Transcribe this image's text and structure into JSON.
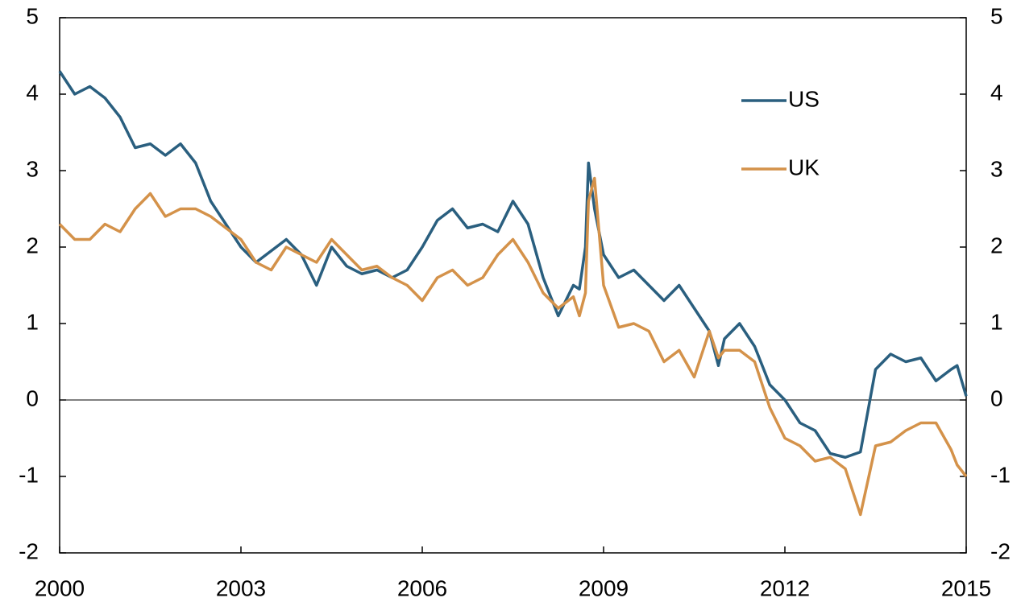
{
  "chart_data": {
    "type": "line",
    "x": [
      2000,
      2000.25,
      2000.5,
      2000.75,
      2001,
      2001.25,
      2001.5,
      2001.75,
      2002,
      2002.25,
      2002.5,
      2002.75,
      2003,
      2003.25,
      2003.5,
      2003.75,
      2004,
      2004.25,
      2004.5,
      2004.75,
      2005,
      2005.25,
      2005.5,
      2005.75,
      2006,
      2006.25,
      2006.5,
      2006.75,
      2007,
      2007.25,
      2007.5,
      2007.75,
      2008,
      2008.25,
      2008.5,
      2008.6,
      2008.7,
      2008.75,
      2008.85,
      2009,
      2009.25,
      2009.5,
      2009.75,
      2010,
      2010.25,
      2010.5,
      2010.75,
      2010.9,
      2011,
      2011.25,
      2011.5,
      2011.75,
      2012,
      2012.25,
      2012.5,
      2012.75,
      2013,
      2013.25,
      2013.5,
      2013.75,
      2014,
      2014.25,
      2014.5,
      2014.75,
      2014.85,
      2015
    ],
    "series": [
      {
        "name": "US",
        "color": "#2a5f7f",
        "values": [
          4.3,
          4.0,
          4.1,
          3.95,
          3.7,
          3.3,
          3.35,
          3.2,
          3.35,
          3.1,
          2.6,
          2.3,
          2.0,
          1.8,
          1.95,
          2.1,
          1.9,
          1.5,
          2.0,
          1.75,
          1.65,
          1.7,
          1.6,
          1.7,
          2.0,
          2.35,
          2.5,
          2.25,
          2.3,
          2.2,
          2.6,
          2.3,
          1.6,
          1.1,
          1.5,
          1.45,
          2.0,
          3.1,
          2.5,
          1.9,
          1.6,
          1.7,
          1.5,
          1.3,
          1.5,
          1.2,
          0.9,
          0.45,
          0.8,
          1.0,
          0.7,
          0.2,
          0.0,
          -0.3,
          -0.4,
          -0.7,
          -0.75,
          -0.68,
          0.4,
          0.6,
          0.5,
          0.55,
          0.25,
          0.4,
          0.45,
          0.05
        ]
      },
      {
        "name": "UK",
        "color": "#d4924a",
        "values": [
          2.3,
          2.1,
          2.1,
          2.3,
          2.2,
          2.5,
          2.7,
          2.4,
          2.5,
          2.5,
          2.4,
          2.25,
          2.1,
          1.8,
          1.7,
          2.0,
          1.9,
          1.8,
          2.1,
          1.9,
          1.7,
          1.75,
          1.6,
          1.5,
          1.3,
          1.6,
          1.7,
          1.5,
          1.6,
          1.9,
          2.1,
          1.8,
          1.4,
          1.2,
          1.35,
          1.1,
          1.4,
          2.6,
          2.9,
          1.5,
          0.95,
          1.0,
          0.9,
          0.5,
          0.65,
          0.3,
          0.9,
          0.55,
          0.65,
          0.65,
          0.5,
          -0.1,
          -0.5,
          -0.6,
          -0.8,
          -0.75,
          -0.9,
          -1.5,
          -0.6,
          -0.55,
          -0.4,
          -0.3,
          -0.3,
          -0.65,
          -0.85,
          -1.0
        ]
      }
    ],
    "xlim": [
      2000,
      2015
    ],
    "xticks": [
      2000,
      2003,
      2006,
      2009,
      2012,
      2015
    ],
    "ylim": [
      -2,
      5
    ],
    "yticks": [
      -2,
      -1,
      0,
      1,
      2,
      3,
      4,
      5
    ],
    "y2lim": [
      -2,
      5
    ],
    "y2ticks": [
      -2,
      -1,
      0,
      1,
      2,
      3,
      4,
      5
    ],
    "legend": "upper right",
    "grid": false
  }
}
